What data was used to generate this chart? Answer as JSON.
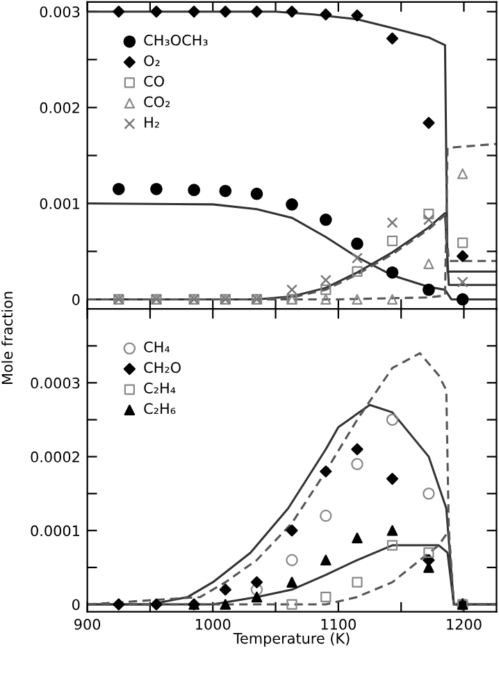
{
  "chart_data": [
    {
      "type": "scatter",
      "ylabel": "Mole fraction",
      "tick_labels": "y",
      "legend": "top left",
      "grid": false,
      "x": [
        925,
        955,
        985,
        1010,
        1035,
        1063,
        1090,
        1115,
        1143,
        1172,
        1199
      ],
      "xlim": [
        900,
        1226
      ],
      "xticks": [
        {
          "value": 900,
          "label": null
        },
        {
          "value": 950,
          "label": null
        },
        {
          "value": 1000,
          "label": null
        },
        {
          "value": 1050,
          "label": null
        },
        {
          "value": 1100,
          "label": null
        },
        {
          "value": 1150,
          "label": null
        },
        {
          "value": 1200,
          "label": null
        }
      ],
      "ylim": [
        -0.0001,
        0.0031
      ],
      "yticks": [
        0,
        {
          "value": 0.0005,
          "label": null
        },
        0.001,
        {
          "value": 0.0015,
          "label": null
        },
        0.002,
        {
          "value": 0.0025,
          "label": null
        },
        0.003
      ],
      "series": [
        {
          "name": "CH₃OCH₃",
          "color": "#000000",
          "marker": "circle",
          "values": [
            0.00115,
            0.00115,
            0.00114,
            0.00113,
            0.0011,
            0.00099,
            0.00083,
            0.00058,
            0.00028,
            0.0001,
            0
          ]
        },
        {
          "name": "O₂",
          "color": "#000000",
          "marker": "diamond",
          "values": [
            0.003,
            0.003,
            0.003,
            0.003,
            0.003,
            0.003,
            0.00297,
            0.00296,
            0.00272,
            0.00184,
            0.00045
          ]
        },
        {
          "name": "CO",
          "color": "#888888",
          "marker": "square",
          "values": [
            0,
            0,
            0,
            0,
            0,
            0,
            0.0001,
            0.00029,
            0.00061,
            0.00089,
            0.00059
          ]
        },
        {
          "name": "CO₂",
          "color": "#888888",
          "marker": "triangle",
          "values": [
            0,
            0,
            0,
            0,
            0,
            0,
            0,
            0,
            0,
            0.00037,
            0.00131
          ]
        },
        {
          "name": "H₂",
          "color": "#777777",
          "marker": "cross",
          "values": [
            0,
            0,
            0,
            0,
            0,
            0.0001,
            0.0002,
            0.00043,
            0.0008,
            0.00083,
            0.00018
          ]
        },
        {
          "type": "line",
          "color": "#333333",
          "line_style": "solid",
          "x": [
            900,
            1050,
            1080,
            1115,
            1143,
            1172,
            1185,
            1187,
            1226
          ],
          "values": [
            0.003,
            0.003,
            0.00297,
            0.00292,
            0.00283,
            0.00273,
            0.00265,
            0.00029,
            0.00029
          ]
        },
        {
          "type": "line",
          "color": "#333333",
          "line_style": "solid",
          "x": [
            900,
            1000,
            1035,
            1063,
            1090,
            1115,
            1143,
            1172,
            1185,
            1190,
            1226
          ],
          "values": [
            0.001,
            0.00099,
            0.00094,
            0.00085,
            0.00065,
            0.00044,
            0.00025,
            0.00013,
            0.0001,
            0,
            0
          ]
        },
        {
          "type": "line",
          "color": "#333333",
          "line_style": "solid",
          "x": [
            900,
            1035,
            1063,
            1090,
            1115,
            1143,
            1172,
            1185,
            1188,
            1226
          ],
          "values": [
            0,
            0,
            3e-05,
            0.00012,
            0.00028,
            0.00049,
            0.00075,
            0.0009,
            0.00015,
            0.00015
          ]
        },
        {
          "type": "line",
          "color": "#555555",
          "line_style": "dashed",
          "x": [
            900,
            1035,
            1063,
            1090,
            1115,
            1143,
            1172,
            1185,
            1188,
            1226
          ],
          "values": [
            0,
            0,
            2e-05,
            0.0001,
            0.00026,
            0.00047,
            0.00073,
            0.00088,
            0.0004,
            0.0004
          ]
        },
        {
          "type": "line",
          "color": "#555555",
          "line_style": "dashed",
          "x": [
            900,
            1100,
            1172,
            1185,
            1187,
            1226
          ],
          "values": [
            0,
            0,
            2e-05,
            4e-05,
            0.00158,
            0.00162
          ]
        }
      ]
    },
    {
      "type": "scatter",
      "xlabel": "Temperature (K)",
      "legend": "top left",
      "grid": false,
      "x": [
        925,
        955,
        985,
        1010,
        1035,
        1063,
        1090,
        1115,
        1143,
        1172,
        1199
      ],
      "xlim": [
        900,
        1226
      ],
      "xticks": [
        900,
        {
          "value": 950,
          "label": null
        },
        1000,
        {
          "value": 1050,
          "label": null
        },
        1100,
        {
          "value": 1150,
          "label": null
        },
        1200
      ],
      "ylim": [
        -1e-05,
        0.0004
      ],
      "yticks": [
        0,
        {
          "value": 5e-05,
          "label": null
        },
        0.0001,
        {
          "value": 0.00015,
          "label": null
        },
        0.0002,
        {
          "value": 0.00025,
          "label": null
        },
        0.0003,
        {
          "value": 0.00035,
          "label": null
        }
      ],
      "series": [
        {
          "name": "CH₄",
          "color": "#888888",
          "marker": "circle",
          "values": [
            null,
            null,
            null,
            null,
            2e-05,
            6e-05,
            0.00012,
            0.00019,
            0.00025,
            0.00015,
            0
          ]
        },
        {
          "name": "CH₂O",
          "color": "#000000",
          "marker": "diamond",
          "values": [
            0,
            0,
            0,
            2e-05,
            3e-05,
            0.0001,
            0.00018,
            0.00021,
            0.00017,
            6e-05,
            0
          ]
        },
        {
          "name": "C₂H₄",
          "color": "#888888",
          "marker": "square",
          "values": [
            null,
            null,
            null,
            null,
            null,
            0,
            1e-05,
            3e-05,
            8e-05,
            7e-05,
            0
          ]
        },
        {
          "name": "C₂H₆",
          "color": "#000000",
          "marker": "triangle",
          "values": [
            null,
            null,
            0,
            0,
            1e-05,
            3e-05,
            6e-05,
            9e-05,
            0.0001,
            5e-05,
            0
          ]
        },
        {
          "type": "line",
          "color": "#333333",
          "line_style": "solid",
          "x": [
            900,
            950,
            980,
            1000,
            1030,
            1060,
            1090,
            1100,
            1125,
            1143,
            1172,
            1186,
            1192,
            1226
          ],
          "values": [
            0,
            0,
            1e-05,
            3e-05,
            7e-05,
            0.00013,
            0.00021,
            0.00024,
            0.00027,
            0.00026,
            0.0002,
            0.00013,
            0,
            0
          ]
        },
        {
          "type": "line",
          "color": "#333333",
          "line_style": "solid",
          "x": [
            900,
            1000,
            1035,
            1063,
            1090,
            1115,
            1143,
            1165,
            1180,
            1187,
            1192,
            1226
          ],
          "values": [
            0,
            0,
            1e-05,
            2e-05,
            4e-05,
            6e-05,
            8e-05,
            8e-05,
            8e-05,
            7e-05,
            0,
            0
          ]
        },
        {
          "type": "line",
          "color": "#555555",
          "line_style": "dashed",
          "x": [
            900,
            990,
            1010,
            1035,
            1063,
            1090,
            1115,
            1143,
            1165,
            1180,
            1186,
            1188,
            1192,
            1226
          ],
          "values": [
            0,
            1e-05,
            3e-05,
            6e-05,
            0.00011,
            0.00018,
            0.00025,
            0.00032,
            0.00034,
            0.00031,
            0.00029,
            0.0001,
            0,
            0
          ]
        },
        {
          "type": "line",
          "color": "#555555",
          "line_style": "dashed",
          "x": [
            900,
            1063,
            1090,
            1115,
            1143,
            1165,
            1180,
            1188,
            1192,
            1226
          ],
          "values": [
            0,
            0,
            0,
            1e-05,
            3e-05,
            6e-05,
            8e-05,
            0.0001,
            0,
            0
          ]
        }
      ]
    }
  ]
}
